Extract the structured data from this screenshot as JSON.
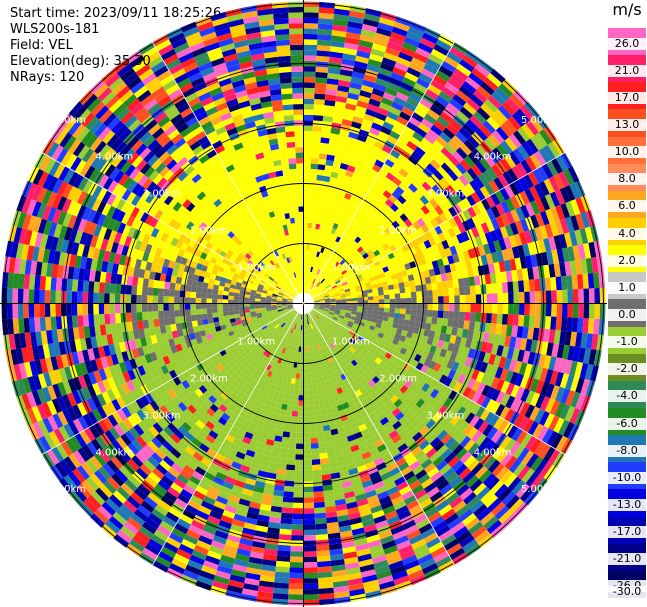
{
  "info": {
    "start_time": "Start time: 2023/09/11 18:25:26",
    "instrument": "WLS200s-181",
    "field": "Field: VEL",
    "elevation": "Elevation(deg): 35.30",
    "nrays": "NRays: 120"
  },
  "colorbar": {
    "unit": "m/s",
    "labels": [
      "26.0",
      "21.0",
      "17.0",
      "13.0",
      "10.0",
      "8.0",
      "6.0",
      "4.0",
      "2.0",
      "1.0",
      "0.0",
      "-1.0",
      "-2.0",
      "-4.0",
      "-6.0",
      "-8.0",
      "-10.0",
      "-13.0",
      "-17.0",
      "-21.0",
      "-26.0",
      "-30.0"
    ],
    "colors": [
      "#ff66c4",
      "#ff1f67",
      "#ff1f1f",
      "#ff4e1f",
      "#ff6f37",
      "#ff8c5a",
      "#ffa81f",
      "#ffd000",
      "#ffff00",
      "#c8c8c8",
      "#6e6e6e",
      "#9acd32",
      "#6b8e23",
      "#2e8b57",
      "#228b22",
      "#1f78b4",
      "#1f3cff",
      "#0000e0",
      "#0000b4",
      "#00008b",
      "#000064"
    ]
  },
  "range_rings": {
    "labels": [
      "1.00km",
      "2.00km",
      "3.00km",
      "4.00km",
      "5.00km"
    ]
  }
}
